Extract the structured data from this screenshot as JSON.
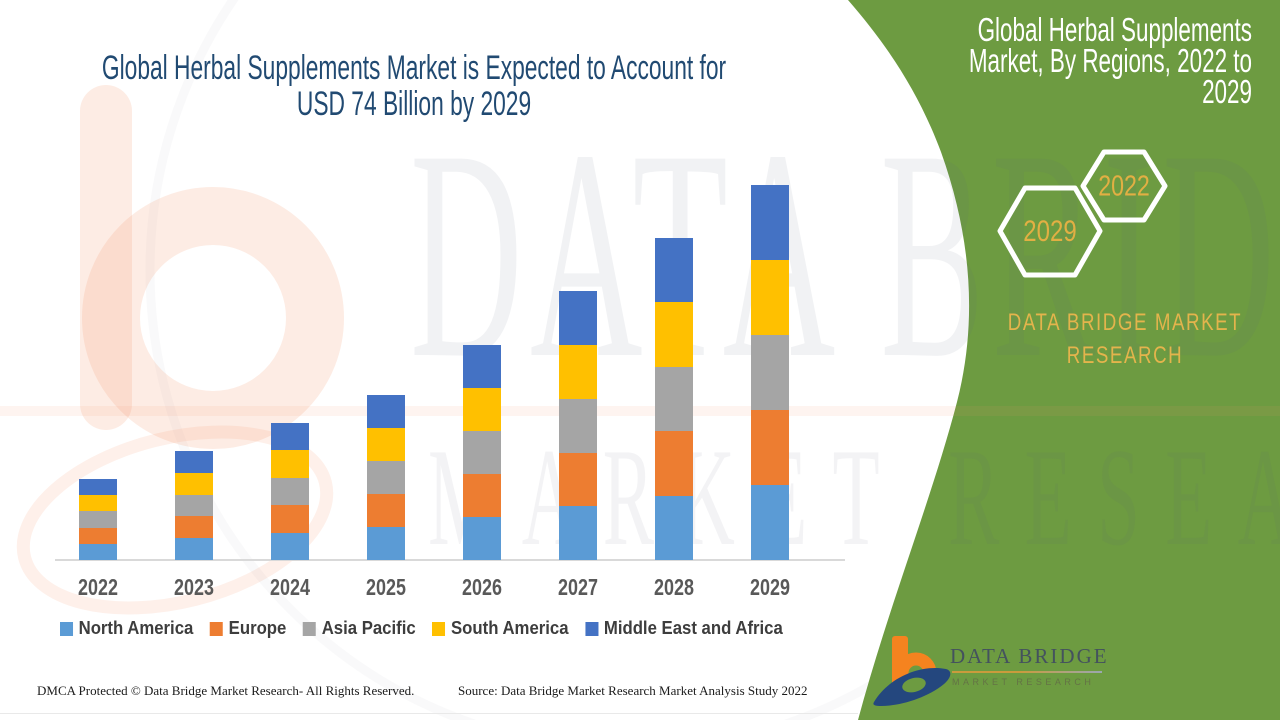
{
  "main_title": {
    "line1": "Global Herbal Supplements Market is Expected to Account for",
    "line2": "USD 74 Billion by 2029"
  },
  "chart_data": {
    "type": "bar",
    "stacked": true,
    "title": "Global Herbal Supplements Market is Expected to Account for USD 74 Billion by 2029",
    "unit": "USD Billion",
    "categories": [
      "2022",
      "2023",
      "2024",
      "2025",
      "2026",
      "2027",
      "2028",
      "2029"
    ],
    "series": [
      {
        "name": "North America",
        "color": "#5B9BD5",
        "values": [
          3.2,
          4.3,
          5.4,
          6.5,
          8.5,
          10.6,
          12.7,
          14.8
        ]
      },
      {
        "name": "Europe",
        "color": "#ED7D31",
        "values": [
          3.2,
          4.3,
          5.4,
          6.5,
          8.5,
          10.6,
          12.7,
          14.8
        ]
      },
      {
        "name": "Asia Pacific",
        "color": "#A5A5A5",
        "values": [
          3.2,
          4.3,
          5.4,
          6.5,
          8.5,
          10.6,
          12.7,
          14.8
        ]
      },
      {
        "name": "South America",
        "color": "#FFC000",
        "values": [
          3.2,
          4.3,
          5.4,
          6.5,
          8.5,
          10.6,
          12.7,
          14.8
        ]
      },
      {
        "name": "Middle East and Africa",
        "color": "#4472C4",
        "values": [
          3.2,
          4.3,
          5.4,
          6.5,
          8.5,
          10.6,
          12.7,
          14.8
        ]
      }
    ],
    "totals": [
      16,
      21.5,
      27,
      32.5,
      42.5,
      53,
      63.5,
      74
    ],
    "xlabel": "",
    "ylabel": "",
    "ylim": [
      0,
      80
    ],
    "grid": false,
    "legend_position": "bottom"
  },
  "side_panel": {
    "title": "Global Herbal Supplements Market, By Regions, 2022 to 2029",
    "hexagon_left": "2029",
    "hexagon_right": "2022",
    "brand": "DATA BRIDGE MARKET RESEARCH",
    "bg_color": "#6d9b41",
    "accent_color": "#e4b44c"
  },
  "footer": {
    "dmca": "DMCA Protected © Data Bridge Market Research- All Rights Reserved.",
    "source": "Source: Data Bridge Market Research Market Analysis Study 2022",
    "logo_title": "DATA BRIDGE",
    "logo_subtitle": "MARKET RESEARCH"
  },
  "watermark": {
    "line1": "DATA BRIDGE",
    "line2": "MARKET RESEARCH"
  }
}
